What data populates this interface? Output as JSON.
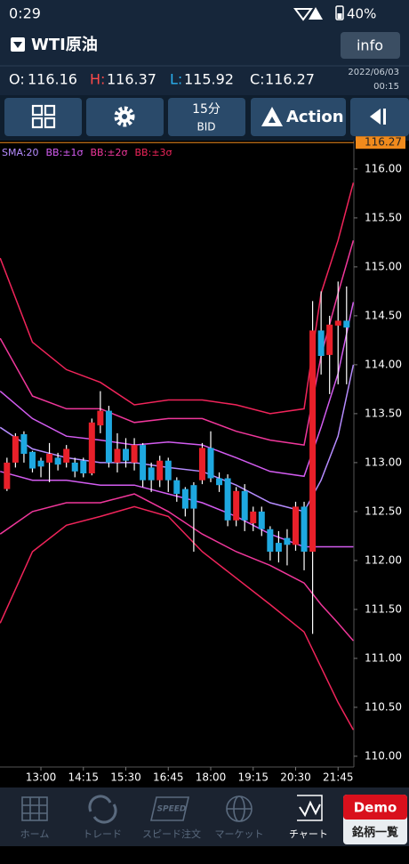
{
  "status": {
    "time": "0:29",
    "battery": "40%"
  },
  "header": {
    "title": "WTI原油",
    "info": "info"
  },
  "ohlc": {
    "o_label": "O:",
    "o": 116.16,
    "h_label": "H:",
    "h": 116.37,
    "l_label": "L:",
    "l": 115.92,
    "c_label": "C:",
    "c": 116.27,
    "date": "2022/06/03",
    "time": "00:15"
  },
  "toolbar": {
    "interval": "15分",
    "side": "BID",
    "action": "Action"
  },
  "chart_data": {
    "type": "candlestick",
    "up_color": "#e8202a",
    "down_color": "#1ea8e0",
    "x": [
      1,
      2,
      3,
      4,
      5,
      6,
      7,
      8,
      9,
      10,
      11,
      12,
      13,
      14,
      15,
      16,
      17,
      18,
      19,
      20,
      21,
      22,
      23,
      24,
      25,
      26,
      27,
      28,
      29,
      30,
      31,
      32,
      33,
      34,
      35,
      36,
      37,
      38,
      39,
      40,
      41
    ],
    "open": [
      112.73,
      113.0,
      113.29,
      113.11,
      113.02,
      113.0,
      113.05,
      113.0,
      113.0,
      113.02,
      112.89,
      113.38,
      113.53,
      113.0,
      113.14,
      113.0,
      113.18,
      112.95,
      112.82,
      113.02,
      112.82,
      112.73,
      112.77,
      112.82,
      113.15,
      112.84,
      112.84,
      112.41,
      112.71,
      112.38,
      112.5,
      112.32,
      112.18,
      112.23,
      112.16,
      112.55,
      112.09,
      114.35,
      114.1,
      114.4,
      114.45
    ],
    "high": [
      113.05,
      113.3,
      113.32,
      113.12,
      113.05,
      113.2,
      113.1,
      113.18,
      113.05,
      113.05,
      113.45,
      113.73,
      113.58,
      113.3,
      113.25,
      113.25,
      113.2,
      113.0,
      113.07,
      113.05,
      112.85,
      112.75,
      112.8,
      113.2,
      113.32,
      112.9,
      112.88,
      112.75,
      112.78,
      112.55,
      112.55,
      112.35,
      112.3,
      112.32,
      112.6,
      112.6,
      114.65,
      114.75,
      114.5,
      114.85,
      114.8
    ],
    "low": [
      112.71,
      112.95,
      113.0,
      112.9,
      112.85,
      112.8,
      112.92,
      112.95,
      112.85,
      112.85,
      112.87,
      113.3,
      112.95,
      112.9,
      112.95,
      112.92,
      112.75,
      112.7,
      112.75,
      112.7,
      112.6,
      112.45,
      112.09,
      112.78,
      112.8,
      112.7,
      112.35,
      112.35,
      112.3,
      112.3,
      112.25,
      112.0,
      111.98,
      111.95,
      112.1,
      111.9,
      111.25,
      113.9,
      113.7,
      113.8,
      113.8
    ],
    "close": [
      113.0,
      113.27,
      113.09,
      112.94,
      112.96,
      113.09,
      112.98,
      113.14,
      112.91,
      112.89,
      113.41,
      113.53,
      113.0,
      113.14,
      113.02,
      113.18,
      112.82,
      112.82,
      113.02,
      112.82,
      112.68,
      112.53,
      112.53,
      113.15,
      112.84,
      112.77,
      112.41,
      112.71,
      112.41,
      112.5,
      112.32,
      112.09,
      112.09,
      112.16,
      112.55,
      112.09,
      114.35,
      114.09,
      114.41,
      114.45,
      114.38
    ],
    "series": [
      {
        "name": "SMA:20",
        "color": "#b68cff",
        "x": [
          0.2,
          4,
          8,
          12,
          16,
          20,
          24,
          28,
          32,
          36,
          38,
          40,
          41.8
        ],
        "values": [
          113.36,
          113.14,
          113.05,
          113.0,
          113.0,
          112.95,
          112.91,
          112.77,
          112.59,
          112.5,
          112.82,
          113.27,
          114.0
        ]
      },
      {
        "name": "BB:±1σ",
        "color": "#d35cf0",
        "x": [
          0.2,
          4,
          8,
          12,
          16,
          20,
          24,
          28,
          32,
          36,
          38,
          40,
          41.8
        ],
        "values": [
          113.73,
          113.45,
          113.27,
          113.23,
          113.18,
          113.21,
          113.18,
          113.05,
          112.91,
          112.86,
          113.36,
          113.91,
          114.64
        ]
      },
      {
        "name": null,
        "color": "#d35cf0",
        "x": [
          0.2,
          4,
          8,
          12,
          16,
          20,
          24,
          28,
          32,
          36,
          38,
          40,
          41.8
        ],
        "values": [
          112.91,
          112.82,
          112.82,
          112.77,
          112.77,
          112.68,
          112.59,
          112.45,
          112.27,
          112.14,
          112.14,
          112.14,
          112.14
        ]
      },
      {
        "name": "BB:±2σ",
        "color": "#f0379b",
        "x": [
          0.2,
          4,
          8,
          12,
          16,
          20,
          24,
          28,
          32,
          36,
          38,
          40,
          41.8
        ],
        "values": [
          114.27,
          113.68,
          113.55,
          113.55,
          113.41,
          113.45,
          113.45,
          113.32,
          113.23,
          113.18,
          114.09,
          114.73,
          115.27
        ]
      },
      {
        "name": null,
        "color": "#f0379b",
        "x": [
          0.2,
          4,
          8,
          12,
          16,
          20,
          24,
          28,
          32,
          36,
          38,
          40,
          41.8
        ],
        "values": [
          112.27,
          112.5,
          112.59,
          112.59,
          112.68,
          112.5,
          112.27,
          112.09,
          111.95,
          111.77,
          111.55,
          111.36,
          111.18
        ]
      },
      {
        "name": "BB:±3σ",
        "color": "#f0245a",
        "x": [
          0.2,
          4,
          8,
          12,
          16,
          20,
          24,
          28,
          32,
          36,
          38,
          40,
          41.8
        ],
        "values": [
          115.09,
          114.23,
          113.95,
          113.82,
          113.59,
          113.64,
          113.64,
          113.59,
          113.5,
          113.55,
          114.73,
          115.27,
          115.86
        ]
      },
      {
        "name": null,
        "color": "#f0245a",
        "x": [
          0.2,
          4,
          8,
          12,
          16,
          20,
          24,
          28,
          32,
          36,
          38,
          40,
          41.8
        ],
        "values": [
          111.36,
          112.09,
          112.36,
          112.45,
          112.55,
          112.45,
          112.09,
          111.82,
          111.55,
          111.27,
          110.91,
          110.55,
          110.27
        ]
      }
    ],
    "current_price": 116.27,
    "current_color": "#f08a1c",
    "xlim": [
      0.18,
      41.86
    ],
    "xticks": [
      {
        "value": 5,
        "label": "13:00"
      },
      {
        "value": 10,
        "label": "14:15"
      },
      {
        "value": 15,
        "label": "15:30"
      },
      {
        "value": 20,
        "label": "16:45"
      },
      {
        "value": 25,
        "label": "18:00"
      },
      {
        "value": 30,
        "label": "19:15"
      },
      {
        "value": 35,
        "label": "20:30"
      },
      {
        "value": 40,
        "label": "21:45"
      }
    ],
    "ylim": [
      109.89,
      116.29
    ],
    "yticks": [
      {
        "value": 110,
        "label": "110.00"
      },
      {
        "value": 110.5,
        "label": "110.50"
      },
      {
        "value": 111,
        "label": "111.00"
      },
      {
        "value": 111.5,
        "label": "111.50"
      },
      {
        "value": 112,
        "label": "112.00"
      },
      {
        "value": 112.5,
        "label": "112.50"
      },
      {
        "value": 113,
        "label": "113.00"
      },
      {
        "value": 113.5,
        "label": "113.50"
      },
      {
        "value": 114,
        "label": "114.00"
      },
      {
        "value": 114.5,
        "label": "114.50"
      },
      {
        "value": 115,
        "label": "115.00"
      },
      {
        "value": 115.5,
        "label": "115.50"
      },
      {
        "value": 116,
        "label": "116.00"
      }
    ]
  },
  "tabbar": {
    "tabs": [
      "ホーム",
      "トレード",
      "スピード注文",
      "マーケット",
      "チャート"
    ],
    "speed": "SPEED",
    "demo": "Demo",
    "list": "銘柄一覧"
  }
}
